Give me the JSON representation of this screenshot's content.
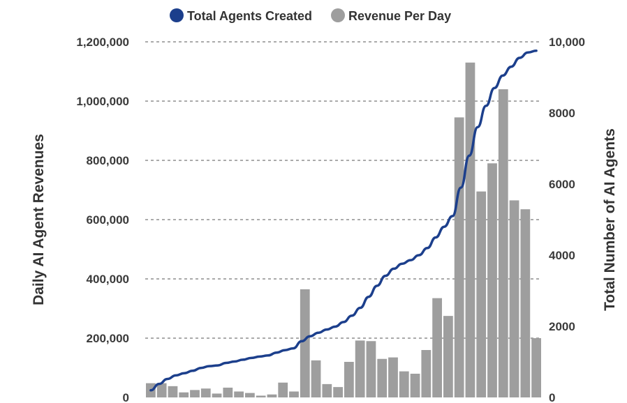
{
  "chart_data": {
    "type": "bar",
    "legend": {
      "placement": "top",
      "entries": [
        "Total Agents Created",
        "Revenue Per Day"
      ]
    },
    "colors": {
      "line": "#1c3f8c",
      "bars": "#9e9e9e",
      "grid": "#555555",
      "text": "#3a3a3a"
    },
    "y_left": {
      "label": "Daily AI Agent Revenues",
      "range": [
        0,
        1200000
      ],
      "ticks": [
        0,
        200000,
        400000,
        600000,
        800000,
        1000000,
        1200000
      ],
      "tick_labels": [
        "0",
        "200,000",
        "400,000",
        "600,000",
        "800,000",
        "1,000,000",
        "1,200,000"
      ]
    },
    "y_right": {
      "label": "Total Number of AI Agents",
      "range": [
        0,
        10000
      ],
      "ticks": [
        0,
        2000,
        4000,
        6000,
        8000,
        10000
      ],
      "tick_labels": [
        "0",
        "2000",
        "4000",
        "6000",
        "8000",
        "10,000"
      ]
    },
    "grid": true,
    "series": [
      {
        "name": "Revenue Per Day",
        "type": "bar",
        "axis": "left",
        "values": [
          48000,
          48000,
          38000,
          17000,
          25000,
          30000,
          13000,
          33000,
          20000,
          15000,
          6000,
          10000,
          50000,
          20000,
          365000,
          125000,
          45000,
          35000,
          120000,
          192000,
          190000,
          130000,
          135000,
          88000,
          80000,
          160000,
          335000,
          275000,
          945000,
          1130000,
          695000,
          790000,
          1040000,
          665000,
          635000,
          200000
        ]
      },
      {
        "name": "Total Agents Created",
        "type": "line",
        "axis": "right",
        "values": [
          200,
          380,
          520,
          620,
          680,
          750,
          830,
          880,
          900,
          970,
          1010,
          1060,
          1110,
          1150,
          1180,
          1260,
          1330,
          1380,
          1580,
          1720,
          1820,
          1910,
          1990,
          2120,
          2300,
          2520,
          2830,
          3140,
          3420,
          3620,
          3760,
          3860,
          4000,
          4200,
          4500,
          4800,
          5100,
          5900,
          6800,
          7600,
          8200,
          8700,
          9050,
          9300,
          9550,
          9700,
          9750
        ],
        "line_x_start_bar": 0,
        "line_x_end_bar": 35
      }
    ]
  }
}
